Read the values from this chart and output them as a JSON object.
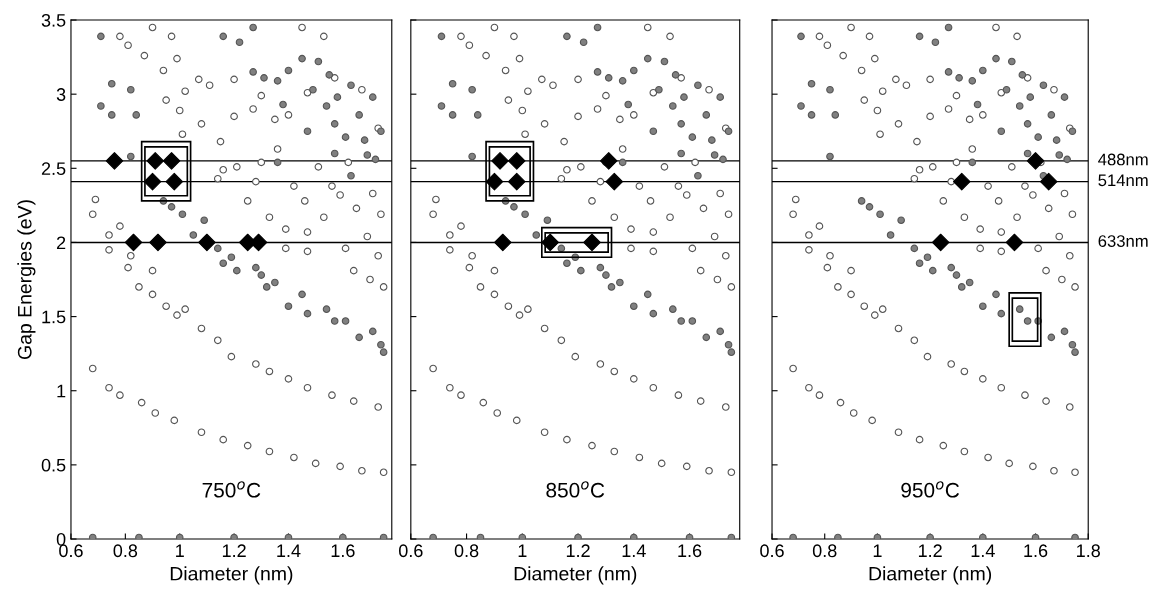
{
  "chart_data": [
    {
      "type": "scatter",
      "xlabel": "Diameter (nm)",
      "ylabel": "Gap Energies (eV)",
      "xlim": [
        0.6,
        1.78
      ],
      "xticks": [
        0.6,
        0.8,
        1,
        1.2,
        1.4,
        1.6
      ],
      "ylim": [
        0,
        3.5
      ],
      "yticks": [
        0,
        0.5,
        1,
        1.5,
        2,
        2.5,
        3,
        3.5
      ],
      "grid": false,
      "legend": false,
      "annotations": [
        "750$^{o}$C"
      ],
      "ref_lines": [
        {
          "axis": "y",
          "value": 2.55,
          "color": "#000000"
        },
        {
          "axis": "y",
          "value": 2.41,
          "color": "#000000"
        },
        {
          "axis": "y",
          "value": 2.0,
          "color": "#000000"
        }
      ],
      "series": [
        {
          "color": "#ffffff",
          "marker": "circle",
          "x": [
            0.68,
            0.74,
            0.78,
            0.86,
            0.91,
            0.98,
            1.08,
            1.16,
            1.25,
            1.33,
            1.42,
            1.5,
            1.59,
            1.67,
            1.75,
            0.85,
            0.9,
            0.95,
            0.99,
            1.02,
            1.08,
            1.14,
            1.19,
            1.28,
            1.33,
            1.4,
            1.47,
            1.56,
            1.64,
            1.73,
            0.74,
            0.74,
            0.78,
            0.81,
            0.82,
            0.9,
            0.68,
            0.69,
            0.81,
            0.78,
            0.87,
            0.9,
            0.94,
            0.95,
            0.97,
            0.99,
            1.0,
            1.02,
            1.01,
            1.07,
            1.08,
            1.11,
            1.14,
            1.15,
            1.16,
            1.2,
            1.2,
            1.21,
            1.25,
            1.27,
            1.28,
            1.3,
            1.3,
            1.33,
            1.35,
            1.36,
            1.39,
            1.4,
            1.42,
            1.46,
            1.47,
            1.47,
            1.51,
            1.53,
            1.56,
            1.57,
            1.59,
            1.61,
            1.62,
            1.64,
            1.65,
            1.67,
            1.69,
            1.7,
            1.71,
            1.73,
            1.73,
            1.74,
            1.75,
            1.45,
            1.53,
            1.39,
            1.47
          ],
          "values": [
            1.15,
            1.02,
            0.97,
            0.92,
            0.85,
            0.8,
            0.72,
            0.67,
            0.63,
            0.59,
            0.55,
            0.51,
            0.49,
            0.46,
            0.45,
            1.7,
            1.65,
            1.57,
            1.51,
            1.55,
            1.42,
            1.34,
            1.23,
            1.18,
            1.13,
            1.08,
            1.02,
            0.97,
            0.93,
            0.89,
            2.05,
            1.95,
            2.11,
            1.83,
            1.91,
            1.81,
            2.19,
            2.29,
            3.33,
            3.39,
            3.26,
            3.45,
            3.16,
            2.96,
            3.39,
            3.24,
            2.89,
            3.02,
            2.73,
            3.1,
            2.8,
            3.06,
            2.43,
            2.68,
            2.49,
            3.1,
            2.85,
            2.51,
            2.28,
            2.9,
            2.41,
            2.99,
            2.54,
            2.17,
            2.83,
            2.63,
            2.09,
            2.86,
            2.38,
            2.28,
            3.01,
            2.07,
            2.51,
            2.17,
            2.38,
            3.11,
            2.32,
            1.96,
            2.54,
            1.81,
            2.23,
            3.03,
            2.04,
            1.75,
            2.33,
            2.77,
            1.91,
            2.19,
            1.7,
            3.45,
            3.39,
            1.96,
            1.94
          ]
        },
        {
          "color": "#808080",
          "marker": "circle",
          "x": [
            0.71,
            0.75,
            0.71,
            0.75,
            0.82,
            0.84,
            0.82,
            0.94,
            0.97,
            1.01,
            1.05,
            1.09,
            1.14,
            1.16,
            1.19,
            1.21,
            1.28,
            1.3,
            1.32,
            1.35,
            1.4,
            1.45,
            1.47,
            1.54,
            1.57,
            1.61,
            1.66,
            1.71,
            1.74,
            1.75,
            1.16,
            1.22,
            1.27,
            1.27,
            1.31,
            1.36,
            1.4,
            1.38,
            1.45,
            1.49,
            1.51,
            1.55,
            1.54,
            1.57,
            1.58,
            1.63,
            1.61,
            1.66,
            1.68,
            1.69,
            1.71,
            1.72,
            1.74,
            1.57,
            1.47,
            1.36,
            1.63,
            0.68,
            0.85,
            1.0,
            1.2,
            1.4,
            1.6,
            1.75
          ],
          "values": [
            3.39,
            3.07,
            2.92,
            2.86,
            3.03,
            2.86,
            2.58,
            2.28,
            2.24,
            2.19,
            2.05,
            2.15,
            1.96,
            1.86,
            1.9,
            1.81,
            1.83,
            1.78,
            1.7,
            1.73,
            1.57,
            1.65,
            1.52,
            1.55,
            1.47,
            1.47,
            1.36,
            1.4,
            1.31,
            1.26,
            3.39,
            3.35,
            3.45,
            3.15,
            3.11,
            3.09,
            3.16,
            2.93,
            3.24,
            3.03,
            3.22,
            3.13,
            2.92,
            2.8,
            2.98,
            3.06,
            2.71,
            2.86,
            2.69,
            2.59,
            2.98,
            2.56,
            2.75,
            2.6,
            2.75,
            2.54,
            2.45,
            0.01,
            0.01,
            0.01,
            0.01,
            0.01,
            0.01,
            0.01
          ]
        },
        {
          "color": "#000000",
          "marker": "diamond",
          "x": [
            0.76,
            0.91,
            0.97,
            0.9,
            0.98,
            0.83,
            0.92,
            1.1,
            1.25,
            1.29
          ],
          "values": [
            2.55,
            2.55,
            2.55,
            2.41,
            2.41,
            2.0,
            2.0,
            2.0,
            2.0,
            2.0
          ]
        }
      ]
    },
    {
      "type": "scatter",
      "xlabel": "Diameter (nm)",
      "xlim": [
        0.6,
        1.78
      ],
      "xticks": [
        0.6,
        0.8,
        1,
        1.2,
        1.4,
        1.6
      ],
      "ylim": [
        0,
        3.5
      ],
      "yticks": [
        0,
        0.5,
        1,
        1.5,
        2,
        2.5,
        3,
        3.5
      ],
      "tick_labels": "x",
      "grid": false,
      "legend": false,
      "annotations": [
        "850$^{o}$C"
      ],
      "ref_lines": [
        {
          "axis": "y",
          "value": 2.55,
          "color": "#000000"
        },
        {
          "axis": "y",
          "value": 2.41,
          "color": "#000000"
        },
        {
          "axis": "y",
          "value": 2.0,
          "color": "#000000"
        }
      ],
      "series": [
        {
          "color": "#ffffff",
          "marker": "circle",
          "x": [
            0.68,
            0.74,
            0.78,
            0.86,
            0.91,
            0.98,
            1.08,
            1.16,
            1.25,
            1.33,
            1.42,
            1.5,
            1.59,
            1.67,
            1.75,
            0.85,
            0.9,
            0.95,
            0.99,
            1.02,
            1.08,
            1.14,
            1.19,
            1.28,
            1.33,
            1.4,
            1.47,
            1.56,
            1.64,
            1.73,
            0.74,
            0.74,
            0.78,
            0.81,
            0.82,
            0.9,
            0.68,
            0.69,
            0.81,
            0.78,
            0.87,
            0.9,
            0.94,
            0.95,
            0.97,
            0.99,
            1.0,
            1.02,
            1.01,
            1.07,
            1.08,
            1.11,
            1.14,
            1.15,
            1.16,
            1.2,
            1.2,
            1.21,
            1.25,
            1.27,
            1.28,
            1.3,
            1.3,
            1.33,
            1.35,
            1.36,
            1.39,
            1.4,
            1.42,
            1.46,
            1.47,
            1.47,
            1.51,
            1.53,
            1.56,
            1.57,
            1.59,
            1.61,
            1.62,
            1.64,
            1.65,
            1.67,
            1.69,
            1.7,
            1.71,
            1.73,
            1.73,
            1.74,
            1.75,
            1.45,
            1.53,
            1.39,
            1.47
          ],
          "values": [
            1.15,
            1.02,
            0.97,
            0.92,
            0.85,
            0.8,
            0.72,
            0.67,
            0.63,
            0.59,
            0.55,
            0.51,
            0.49,
            0.46,
            0.45,
            1.7,
            1.65,
            1.57,
            1.51,
            1.55,
            1.42,
            1.34,
            1.23,
            1.18,
            1.13,
            1.08,
            1.02,
            0.97,
            0.93,
            0.89,
            2.05,
            1.95,
            2.11,
            1.83,
            1.91,
            1.81,
            2.19,
            2.29,
            3.33,
            3.39,
            3.26,
            3.45,
            3.16,
            2.96,
            3.39,
            3.24,
            2.89,
            3.02,
            2.73,
            3.1,
            2.8,
            3.06,
            2.43,
            2.68,
            2.49,
            3.1,
            2.85,
            2.51,
            2.28,
            2.9,
            2.41,
            2.99,
            2.54,
            2.17,
            2.83,
            2.63,
            2.09,
            2.86,
            2.38,
            2.28,
            3.01,
            2.07,
            2.51,
            2.17,
            2.38,
            3.11,
            2.32,
            1.96,
            2.54,
            1.81,
            2.23,
            3.03,
            2.04,
            1.75,
            2.33,
            2.77,
            1.91,
            2.19,
            1.7,
            3.45,
            3.39,
            1.96,
            1.94
          ]
        },
        {
          "color": "#808080",
          "marker": "circle",
          "x": [
            0.71,
            0.75,
            0.71,
            0.75,
            0.82,
            0.84,
            0.82,
            0.94,
            0.97,
            1.01,
            1.05,
            1.09,
            1.14,
            1.16,
            1.19,
            1.21,
            1.28,
            1.3,
            1.32,
            1.35,
            1.4,
            1.45,
            1.47,
            1.54,
            1.57,
            1.61,
            1.66,
            1.71,
            1.74,
            1.75,
            1.16,
            1.22,
            1.27,
            1.27,
            1.31,
            1.36,
            1.4,
            1.38,
            1.45,
            1.49,
            1.51,
            1.55,
            1.54,
            1.57,
            1.58,
            1.63,
            1.61,
            1.66,
            1.68,
            1.69,
            1.71,
            1.72,
            1.74,
            1.57,
            1.47,
            1.36,
            1.63,
            0.68,
            0.85,
            1.0,
            1.2,
            1.4,
            1.6,
            1.75
          ],
          "values": [
            3.39,
            3.07,
            2.92,
            2.86,
            3.03,
            2.86,
            2.58,
            2.28,
            2.24,
            2.19,
            2.05,
            2.15,
            1.96,
            1.86,
            1.9,
            1.81,
            1.83,
            1.78,
            1.7,
            1.73,
            1.57,
            1.65,
            1.52,
            1.55,
            1.47,
            1.47,
            1.36,
            1.4,
            1.31,
            1.26,
            3.39,
            3.35,
            3.45,
            3.15,
            3.11,
            3.09,
            3.16,
            2.93,
            3.24,
            3.03,
            3.22,
            3.13,
            2.92,
            2.8,
            2.98,
            3.06,
            2.71,
            2.86,
            2.69,
            2.59,
            2.98,
            2.56,
            2.75,
            2.6,
            2.75,
            2.54,
            2.45,
            0.01,
            0.01,
            0.01,
            0.01,
            0.01,
            0.01,
            0.01
          ]
        },
        {
          "color": "#000000",
          "marker": "diamond",
          "x": [
            0.92,
            0.98,
            0.9,
            0.98,
            1.31,
            1.33,
            0.93,
            1.1,
            1.25
          ],
          "values": [
            2.55,
            2.55,
            2.41,
            2.41,
            2.55,
            2.41,
            2.0,
            2.0,
            2.0
          ]
        }
      ]
    },
    {
      "type": "scatter",
      "xlabel": "Diameter (nm)",
      "xlim": [
        0.6,
        1.8
      ],
      "xticks": [
        0.6,
        0.8,
        1,
        1.2,
        1.4,
        1.6,
        1.8
      ],
      "ylim": [
        0,
        3.5
      ],
      "yticks": [
        0,
        0.5,
        1,
        1.5,
        2,
        2.5,
        3,
        3.5
      ],
      "tick_labels": "x",
      "grid": false,
      "legend": false,
      "annotations": [
        "950$^{o}$C"
      ],
      "ref_lines": [
        {
          "axis": "y",
          "value": 2.55,
          "label": "488nm",
          "color": "#000000"
        },
        {
          "axis": "y",
          "value": 2.41,
          "label": "514nm",
          "color": "#000000"
        },
        {
          "axis": "y",
          "value": 2.0,
          "label": "633nm",
          "color": "#000000"
        }
      ],
      "series": [
        {
          "color": "#ffffff",
          "marker": "circle",
          "x": [
            0.68,
            0.74,
            0.78,
            0.86,
            0.91,
            0.98,
            1.08,
            1.16,
            1.25,
            1.33,
            1.42,
            1.5,
            1.59,
            1.67,
            1.75,
            0.85,
            0.9,
            0.95,
            0.99,
            1.02,
            1.08,
            1.14,
            1.19,
            1.28,
            1.33,
            1.4,
            1.47,
            1.56,
            1.64,
            1.73,
            0.74,
            0.74,
            0.78,
            0.81,
            0.82,
            0.9,
            0.68,
            0.69,
            0.81,
            0.78,
            0.87,
            0.9,
            0.94,
            0.95,
            0.97,
            0.99,
            1.0,
            1.02,
            1.01,
            1.07,
            1.08,
            1.11,
            1.14,
            1.15,
            1.16,
            1.2,
            1.2,
            1.21,
            1.25,
            1.27,
            1.28,
            1.3,
            1.3,
            1.33,
            1.35,
            1.36,
            1.39,
            1.4,
            1.42,
            1.46,
            1.47,
            1.47,
            1.51,
            1.53,
            1.56,
            1.57,
            1.59,
            1.61,
            1.62,
            1.64,
            1.65,
            1.67,
            1.69,
            1.7,
            1.71,
            1.73,
            1.73,
            1.74,
            1.75,
            1.45,
            1.53,
            1.39,
            1.47
          ],
          "values": [
            1.15,
            1.02,
            0.97,
            0.92,
            0.85,
            0.8,
            0.72,
            0.67,
            0.63,
            0.59,
            0.55,
            0.51,
            0.49,
            0.46,
            0.45,
            1.7,
            1.65,
            1.57,
            1.51,
            1.55,
            1.42,
            1.34,
            1.23,
            1.18,
            1.13,
            1.08,
            1.02,
            0.97,
            0.93,
            0.89,
            2.05,
            1.95,
            2.11,
            1.83,
            1.91,
            1.81,
            2.19,
            2.29,
            3.33,
            3.39,
            3.26,
            3.45,
            3.16,
            2.96,
            3.39,
            3.24,
            2.89,
            3.02,
            2.73,
            3.1,
            2.8,
            3.06,
            2.43,
            2.68,
            2.49,
            3.1,
            2.85,
            2.51,
            2.28,
            2.9,
            2.41,
            2.99,
            2.54,
            2.17,
            2.83,
            2.63,
            2.09,
            2.86,
            2.38,
            2.28,
            3.01,
            2.07,
            2.51,
            2.17,
            2.38,
            3.11,
            2.32,
            1.96,
            2.54,
            1.81,
            2.23,
            3.03,
            2.04,
            1.75,
            2.33,
            2.77,
            1.91,
            2.19,
            1.7,
            3.45,
            3.39,
            1.96,
            1.94
          ]
        },
        {
          "color": "#808080",
          "marker": "circle",
          "x": [
            0.71,
            0.75,
            0.71,
            0.75,
            0.82,
            0.84,
            0.82,
            0.94,
            0.97,
            1.01,
            1.05,
            1.09,
            1.14,
            1.16,
            1.19,
            1.21,
            1.28,
            1.3,
            1.32,
            1.35,
            1.4,
            1.45,
            1.47,
            1.54,
            1.57,
            1.61,
            1.66,
            1.71,
            1.74,
            1.75,
            1.16,
            1.22,
            1.27,
            1.27,
            1.31,
            1.36,
            1.4,
            1.38,
            1.45,
            1.49,
            1.51,
            1.55,
            1.54,
            1.57,
            1.58,
            1.63,
            1.61,
            1.66,
            1.68,
            1.69,
            1.71,
            1.72,
            1.74,
            1.57,
            1.47,
            1.36,
            1.63,
            0.68,
            0.85,
            1.0,
            1.2,
            1.4,
            1.6,
            1.75
          ],
          "values": [
            3.39,
            3.07,
            2.92,
            2.86,
            3.03,
            2.86,
            2.58,
            2.28,
            2.24,
            2.19,
            2.05,
            2.15,
            1.96,
            1.86,
            1.9,
            1.81,
            1.83,
            1.78,
            1.7,
            1.73,
            1.57,
            1.65,
            1.52,
            1.55,
            1.47,
            1.47,
            1.36,
            1.4,
            1.31,
            1.26,
            3.39,
            3.35,
            3.45,
            3.15,
            3.11,
            3.09,
            3.16,
            2.93,
            3.24,
            3.03,
            3.22,
            3.13,
            2.92,
            2.8,
            2.98,
            3.06,
            2.71,
            2.86,
            2.69,
            2.59,
            2.98,
            2.56,
            2.75,
            2.6,
            2.75,
            2.54,
            2.45,
            0.01,
            0.01,
            0.01,
            0.01,
            0.01,
            0.01,
            0.01
          ]
        },
        {
          "color": "#000000",
          "marker": "diamond",
          "x": [
            1.6,
            1.32,
            1.65,
            1.24,
            1.52
          ],
          "values": [
            2.55,
            2.41,
            2.41,
            2.0,
            2.0
          ]
        }
      ]
    }
  ]
}
